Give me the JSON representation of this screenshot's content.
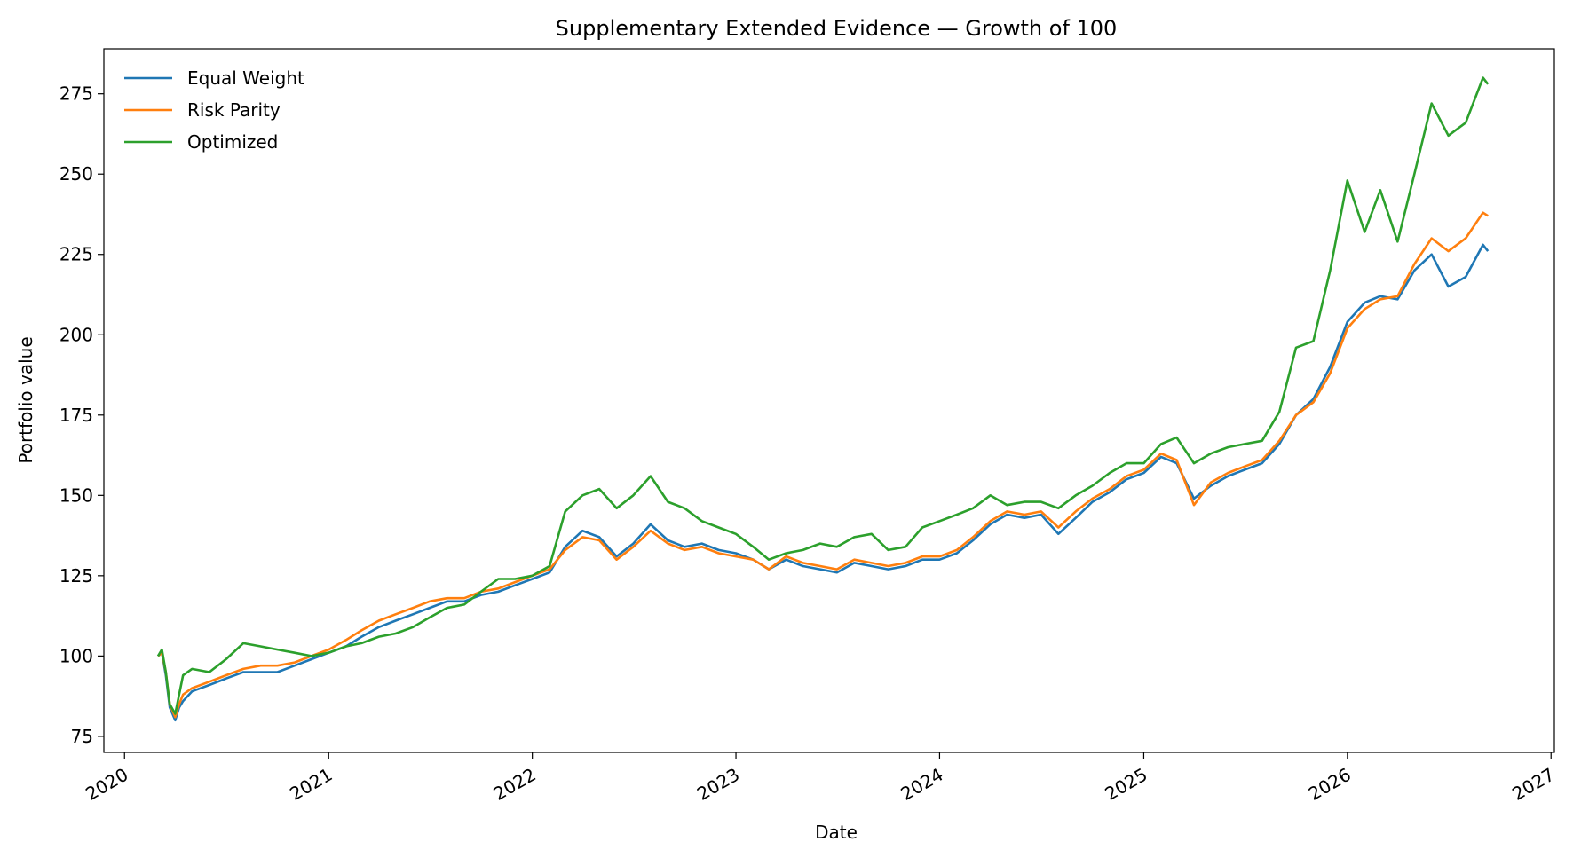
{
  "chart_data": {
    "type": "line",
    "title": "Supplementary Extended Evidence — Growth of 100",
    "xlabel": "Date",
    "ylabel": "Portfolio value",
    "xlim": [
      "2019-11-25",
      "2027-01-07"
    ],
    "ylim": [
      70,
      289
    ],
    "x_ticks": [
      "2020",
      "2021",
      "2022",
      "2023",
      "2024",
      "2025",
      "2026",
      "2027"
    ],
    "y_ticks": [
      75,
      100,
      125,
      150,
      175,
      200,
      225,
      250,
      275
    ],
    "grid": false,
    "legend": {
      "placement": "top-left",
      "frame": false
    },
    "series": [
      {
        "name": "Equal Weight",
        "color": "#1f77b4",
        "points": [
          [
            "2020-03-01",
            100
          ],
          [
            "2020-03-08",
            101
          ],
          [
            "2020-03-15",
            94
          ],
          [
            "2020-03-22",
            84
          ],
          [
            "2020-04-01",
            80
          ],
          [
            "2020-04-08",
            84
          ],
          [
            "2020-04-15",
            86
          ],
          [
            "2020-05-01",
            89
          ],
          [
            "2020-06-01",
            91
          ],
          [
            "2020-07-01",
            93
          ],
          [
            "2020-08-01",
            95
          ],
          [
            "2020-09-01",
            95
          ],
          [
            "2020-10-01",
            95
          ],
          [
            "2020-11-01",
            97
          ],
          [
            "2020-12-01",
            99
          ],
          [
            "2021-01-01",
            101
          ],
          [
            "2021-02-01",
            103
          ],
          [
            "2021-03-01",
            106
          ],
          [
            "2021-04-01",
            109
          ],
          [
            "2021-05-01",
            111
          ],
          [
            "2021-06-01",
            113
          ],
          [
            "2021-07-01",
            115
          ],
          [
            "2021-08-01",
            117
          ],
          [
            "2021-09-01",
            117
          ],
          [
            "2021-10-01",
            119
          ],
          [
            "2021-11-01",
            120
          ],
          [
            "2021-12-01",
            122
          ],
          [
            "2022-01-01",
            124
          ],
          [
            "2022-02-01",
            126
          ],
          [
            "2022-03-01",
            134
          ],
          [
            "2022-04-01",
            139
          ],
          [
            "2022-05-01",
            137
          ],
          [
            "2022-06-01",
            131
          ],
          [
            "2022-07-01",
            135
          ],
          [
            "2022-08-01",
            141
          ],
          [
            "2022-09-01",
            136
          ],
          [
            "2022-10-01",
            134
          ],
          [
            "2022-11-01",
            135
          ],
          [
            "2022-12-01",
            133
          ],
          [
            "2023-01-01",
            132
          ],
          [
            "2023-02-01",
            130
          ],
          [
            "2023-03-01",
            127
          ],
          [
            "2023-04-01",
            130
          ],
          [
            "2023-05-01",
            128
          ],
          [
            "2023-06-01",
            127
          ],
          [
            "2023-07-01",
            126
          ],
          [
            "2023-08-01",
            129
          ],
          [
            "2023-09-01",
            128
          ],
          [
            "2023-10-01",
            127
          ],
          [
            "2023-11-01",
            128
          ],
          [
            "2023-12-01",
            130
          ],
          [
            "2024-01-01",
            130
          ],
          [
            "2024-02-01",
            132
          ],
          [
            "2024-03-01",
            136
          ],
          [
            "2024-04-01",
            141
          ],
          [
            "2024-05-01",
            144
          ],
          [
            "2024-06-01",
            143
          ],
          [
            "2024-07-01",
            144
          ],
          [
            "2024-08-01",
            138
          ],
          [
            "2024-09-01",
            143
          ],
          [
            "2024-10-01",
            148
          ],
          [
            "2024-11-01",
            151
          ],
          [
            "2024-12-01",
            155
          ],
          [
            "2025-01-01",
            157
          ],
          [
            "2025-02-01",
            162
          ],
          [
            "2025-03-01",
            160
          ],
          [
            "2025-04-01",
            149
          ],
          [
            "2025-05-01",
            153
          ],
          [
            "2025-06-01",
            156
          ],
          [
            "2025-07-01",
            158
          ],
          [
            "2025-08-01",
            160
          ],
          [
            "2025-09-01",
            166
          ],
          [
            "2025-10-01",
            175
          ],
          [
            "2025-11-01",
            180
          ],
          [
            "2025-12-01",
            190
          ],
          [
            "2026-01-01",
            204
          ],
          [
            "2026-02-01",
            210
          ],
          [
            "2026-03-01",
            212
          ],
          [
            "2026-04-01",
            211
          ],
          [
            "2026-05-01",
            220
          ],
          [
            "2026-06-01",
            225
          ],
          [
            "2026-07-01",
            215
          ],
          [
            "2026-08-01",
            218
          ],
          [
            "2026-09-01",
            228
          ],
          [
            "2026-09-10",
            226
          ]
        ]
      },
      {
        "name": "Risk Parity",
        "color": "#ff7f0e",
        "points": [
          [
            "2020-03-01",
            100
          ],
          [
            "2020-03-08",
            101
          ],
          [
            "2020-03-15",
            95
          ],
          [
            "2020-03-22",
            85
          ],
          [
            "2020-04-01",
            81
          ],
          [
            "2020-04-08",
            85
          ],
          [
            "2020-04-15",
            88
          ],
          [
            "2020-05-01",
            90
          ],
          [
            "2020-06-01",
            92
          ],
          [
            "2020-07-01",
            94
          ],
          [
            "2020-08-01",
            96
          ],
          [
            "2020-09-01",
            97
          ],
          [
            "2020-10-01",
            97
          ],
          [
            "2020-11-01",
            98
          ],
          [
            "2020-12-01",
            100
          ],
          [
            "2021-01-01",
            102
          ],
          [
            "2021-02-01",
            105
          ],
          [
            "2021-03-01",
            108
          ],
          [
            "2021-04-01",
            111
          ],
          [
            "2021-05-01",
            113
          ],
          [
            "2021-06-01",
            115
          ],
          [
            "2021-07-01",
            117
          ],
          [
            "2021-08-01",
            118
          ],
          [
            "2021-09-01",
            118
          ],
          [
            "2021-10-01",
            120
          ],
          [
            "2021-11-01",
            121
          ],
          [
            "2021-12-01",
            123
          ],
          [
            "2022-01-01",
            125
          ],
          [
            "2022-02-01",
            127
          ],
          [
            "2022-03-01",
            133
          ],
          [
            "2022-04-01",
            137
          ],
          [
            "2022-05-01",
            136
          ],
          [
            "2022-06-01",
            130
          ],
          [
            "2022-07-01",
            134
          ],
          [
            "2022-08-01",
            139
          ],
          [
            "2022-09-01",
            135
          ],
          [
            "2022-10-01",
            133
          ],
          [
            "2022-11-01",
            134
          ],
          [
            "2022-12-01",
            132
          ],
          [
            "2023-01-01",
            131
          ],
          [
            "2023-02-01",
            130
          ],
          [
            "2023-03-01",
            127
          ],
          [
            "2023-04-01",
            131
          ],
          [
            "2023-05-01",
            129
          ],
          [
            "2023-06-01",
            128
          ],
          [
            "2023-07-01",
            127
          ],
          [
            "2023-08-01",
            130
          ],
          [
            "2023-09-01",
            129
          ],
          [
            "2023-10-01",
            128
          ],
          [
            "2023-11-01",
            129
          ],
          [
            "2023-12-01",
            131
          ],
          [
            "2024-01-01",
            131
          ],
          [
            "2024-02-01",
            133
          ],
          [
            "2024-03-01",
            137
          ],
          [
            "2024-04-01",
            142
          ],
          [
            "2024-05-01",
            145
          ],
          [
            "2024-06-01",
            144
          ],
          [
            "2024-07-01",
            145
          ],
          [
            "2024-08-01",
            140
          ],
          [
            "2024-09-01",
            145
          ],
          [
            "2024-10-01",
            149
          ],
          [
            "2024-11-01",
            152
          ],
          [
            "2024-12-01",
            156
          ],
          [
            "2025-01-01",
            158
          ],
          [
            "2025-02-01",
            163
          ],
          [
            "2025-03-01",
            161
          ],
          [
            "2025-04-01",
            147
          ],
          [
            "2025-05-01",
            154
          ],
          [
            "2025-06-01",
            157
          ],
          [
            "2025-07-01",
            159
          ],
          [
            "2025-08-01",
            161
          ],
          [
            "2025-09-01",
            167
          ],
          [
            "2025-10-01",
            175
          ],
          [
            "2025-11-01",
            179
          ],
          [
            "2025-12-01",
            188
          ],
          [
            "2026-01-01",
            202
          ],
          [
            "2026-02-01",
            208
          ],
          [
            "2026-03-01",
            211
          ],
          [
            "2026-04-01",
            212
          ],
          [
            "2026-05-01",
            222
          ],
          [
            "2026-06-01",
            230
          ],
          [
            "2026-07-01",
            226
          ],
          [
            "2026-08-01",
            230
          ],
          [
            "2026-09-01",
            238
          ],
          [
            "2026-09-10",
            237
          ]
        ]
      },
      {
        "name": "Optimized",
        "color": "#2ca02c",
        "points": [
          [
            "2020-03-01",
            100
          ],
          [
            "2020-03-08",
            102
          ],
          [
            "2020-03-15",
            95
          ],
          [
            "2020-03-22",
            85
          ],
          [
            "2020-04-01",
            82
          ],
          [
            "2020-04-08",
            88
          ],
          [
            "2020-04-15",
            94
          ],
          [
            "2020-05-01",
            96
          ],
          [
            "2020-06-01",
            95
          ],
          [
            "2020-07-01",
            99
          ],
          [
            "2020-08-01",
            104
          ],
          [
            "2020-09-01",
            103
          ],
          [
            "2020-10-01",
            102
          ],
          [
            "2020-11-01",
            101
          ],
          [
            "2020-12-01",
            100
          ],
          [
            "2021-01-01",
            101
          ],
          [
            "2021-02-01",
            103
          ],
          [
            "2021-03-01",
            104
          ],
          [
            "2021-04-01",
            106
          ],
          [
            "2021-05-01",
            107
          ],
          [
            "2021-06-01",
            109
          ],
          [
            "2021-07-01",
            112
          ],
          [
            "2021-08-01",
            115
          ],
          [
            "2021-09-01",
            116
          ],
          [
            "2021-10-01",
            120
          ],
          [
            "2021-11-01",
            124
          ],
          [
            "2021-12-01",
            124
          ],
          [
            "2022-01-01",
            125
          ],
          [
            "2022-02-01",
            128
          ],
          [
            "2022-03-01",
            145
          ],
          [
            "2022-04-01",
            150
          ],
          [
            "2022-05-01",
            152
          ],
          [
            "2022-06-01",
            146
          ],
          [
            "2022-07-01",
            150
          ],
          [
            "2022-08-01",
            156
          ],
          [
            "2022-09-01",
            148
          ],
          [
            "2022-10-01",
            146
          ],
          [
            "2022-11-01",
            142
          ],
          [
            "2022-12-01",
            140
          ],
          [
            "2023-01-01",
            138
          ],
          [
            "2023-02-01",
            134
          ],
          [
            "2023-03-01",
            130
          ],
          [
            "2023-04-01",
            132
          ],
          [
            "2023-05-01",
            133
          ],
          [
            "2023-06-01",
            135
          ],
          [
            "2023-07-01",
            134
          ],
          [
            "2023-08-01",
            137
          ],
          [
            "2023-09-01",
            138
          ],
          [
            "2023-10-01",
            133
          ],
          [
            "2023-11-01",
            134
          ],
          [
            "2023-12-01",
            140
          ],
          [
            "2024-01-01",
            142
          ],
          [
            "2024-02-01",
            144
          ],
          [
            "2024-03-01",
            146
          ],
          [
            "2024-04-01",
            150
          ],
          [
            "2024-05-01",
            147
          ],
          [
            "2024-06-01",
            148
          ],
          [
            "2024-07-01",
            148
          ],
          [
            "2024-08-01",
            146
          ],
          [
            "2024-09-01",
            150
          ],
          [
            "2024-10-01",
            153
          ],
          [
            "2024-11-01",
            157
          ],
          [
            "2024-12-01",
            160
          ],
          [
            "2025-01-01",
            160
          ],
          [
            "2025-02-01",
            166
          ],
          [
            "2025-03-01",
            168
          ],
          [
            "2025-04-01",
            160
          ],
          [
            "2025-05-01",
            163
          ],
          [
            "2025-06-01",
            165
          ],
          [
            "2025-07-01",
            166
          ],
          [
            "2025-08-01",
            167
          ],
          [
            "2025-09-01",
            176
          ],
          [
            "2025-10-01",
            196
          ],
          [
            "2025-11-01",
            198
          ],
          [
            "2025-12-01",
            220
          ],
          [
            "2026-01-01",
            248
          ],
          [
            "2026-02-01",
            232
          ],
          [
            "2026-03-01",
            245
          ],
          [
            "2026-04-01",
            229
          ],
          [
            "2026-05-01",
            250
          ],
          [
            "2026-06-01",
            272
          ],
          [
            "2026-07-01",
            262
          ],
          [
            "2026-08-01",
            266
          ],
          [
            "2026-09-01",
            280
          ],
          [
            "2026-09-10",
            278
          ]
        ]
      }
    ]
  }
}
